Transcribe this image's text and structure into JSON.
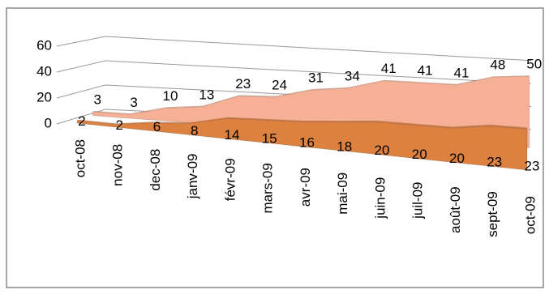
{
  "chart_data": {
    "type": "area3d",
    "categories": [
      "oct-08",
      "nov-08",
      "dec-08",
      "janv-09",
      "févr-09",
      "mars-09",
      "avr-09",
      "mai-09",
      "juin-09",
      "juil-09",
      "août-09",
      "sept-09",
      "oct-09"
    ],
    "series": [
      {
        "color": "#f6b095",
        "values": [
          3,
          3,
          10,
          13,
          23,
          24,
          31,
          34,
          41,
          41,
          41,
          48,
          50
        ]
      },
      {
        "color": "#dd8140",
        "values": [
          2,
          2,
          6,
          8,
          14,
          15,
          16,
          18,
          20,
          20,
          20,
          23,
          23
        ]
      }
    ],
    "ylim": [
      0,
      60
    ],
    "yticks": [
      0,
      20,
      40,
      60
    ],
    "grid": true
  }
}
